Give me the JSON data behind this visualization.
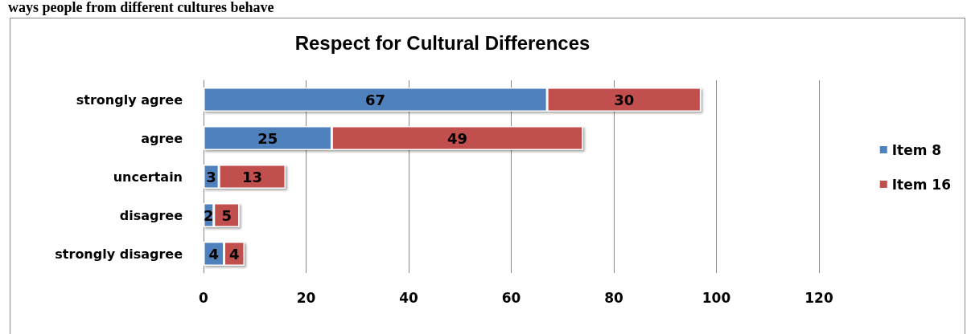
{
  "chart_data": {
    "type": "bar",
    "title": "Respect for Cultural Differences",
    "annotations": [
      "ways people from different cultures behave"
    ],
    "orientation": "horizontal",
    "stacked": true,
    "categories": [
      "strongly agree",
      "agree",
      "uncertain",
      "disagree",
      "strongly disagree"
    ],
    "series": [
      {
        "name": "Item 8",
        "color": "#4f81bd",
        "values": [
          67,
          25,
          3,
          2,
          4
        ]
      },
      {
        "name": "Item 16",
        "color": "#c0504d",
        "values": [
          30,
          49,
          13,
          5,
          4
        ]
      }
    ],
    "xlim": [
      0,
      120
    ],
    "xticks": [
      0,
      20,
      40,
      60,
      80,
      100,
      120
    ],
    "grid": "x",
    "legend": "right",
    "data_labels": true
  }
}
